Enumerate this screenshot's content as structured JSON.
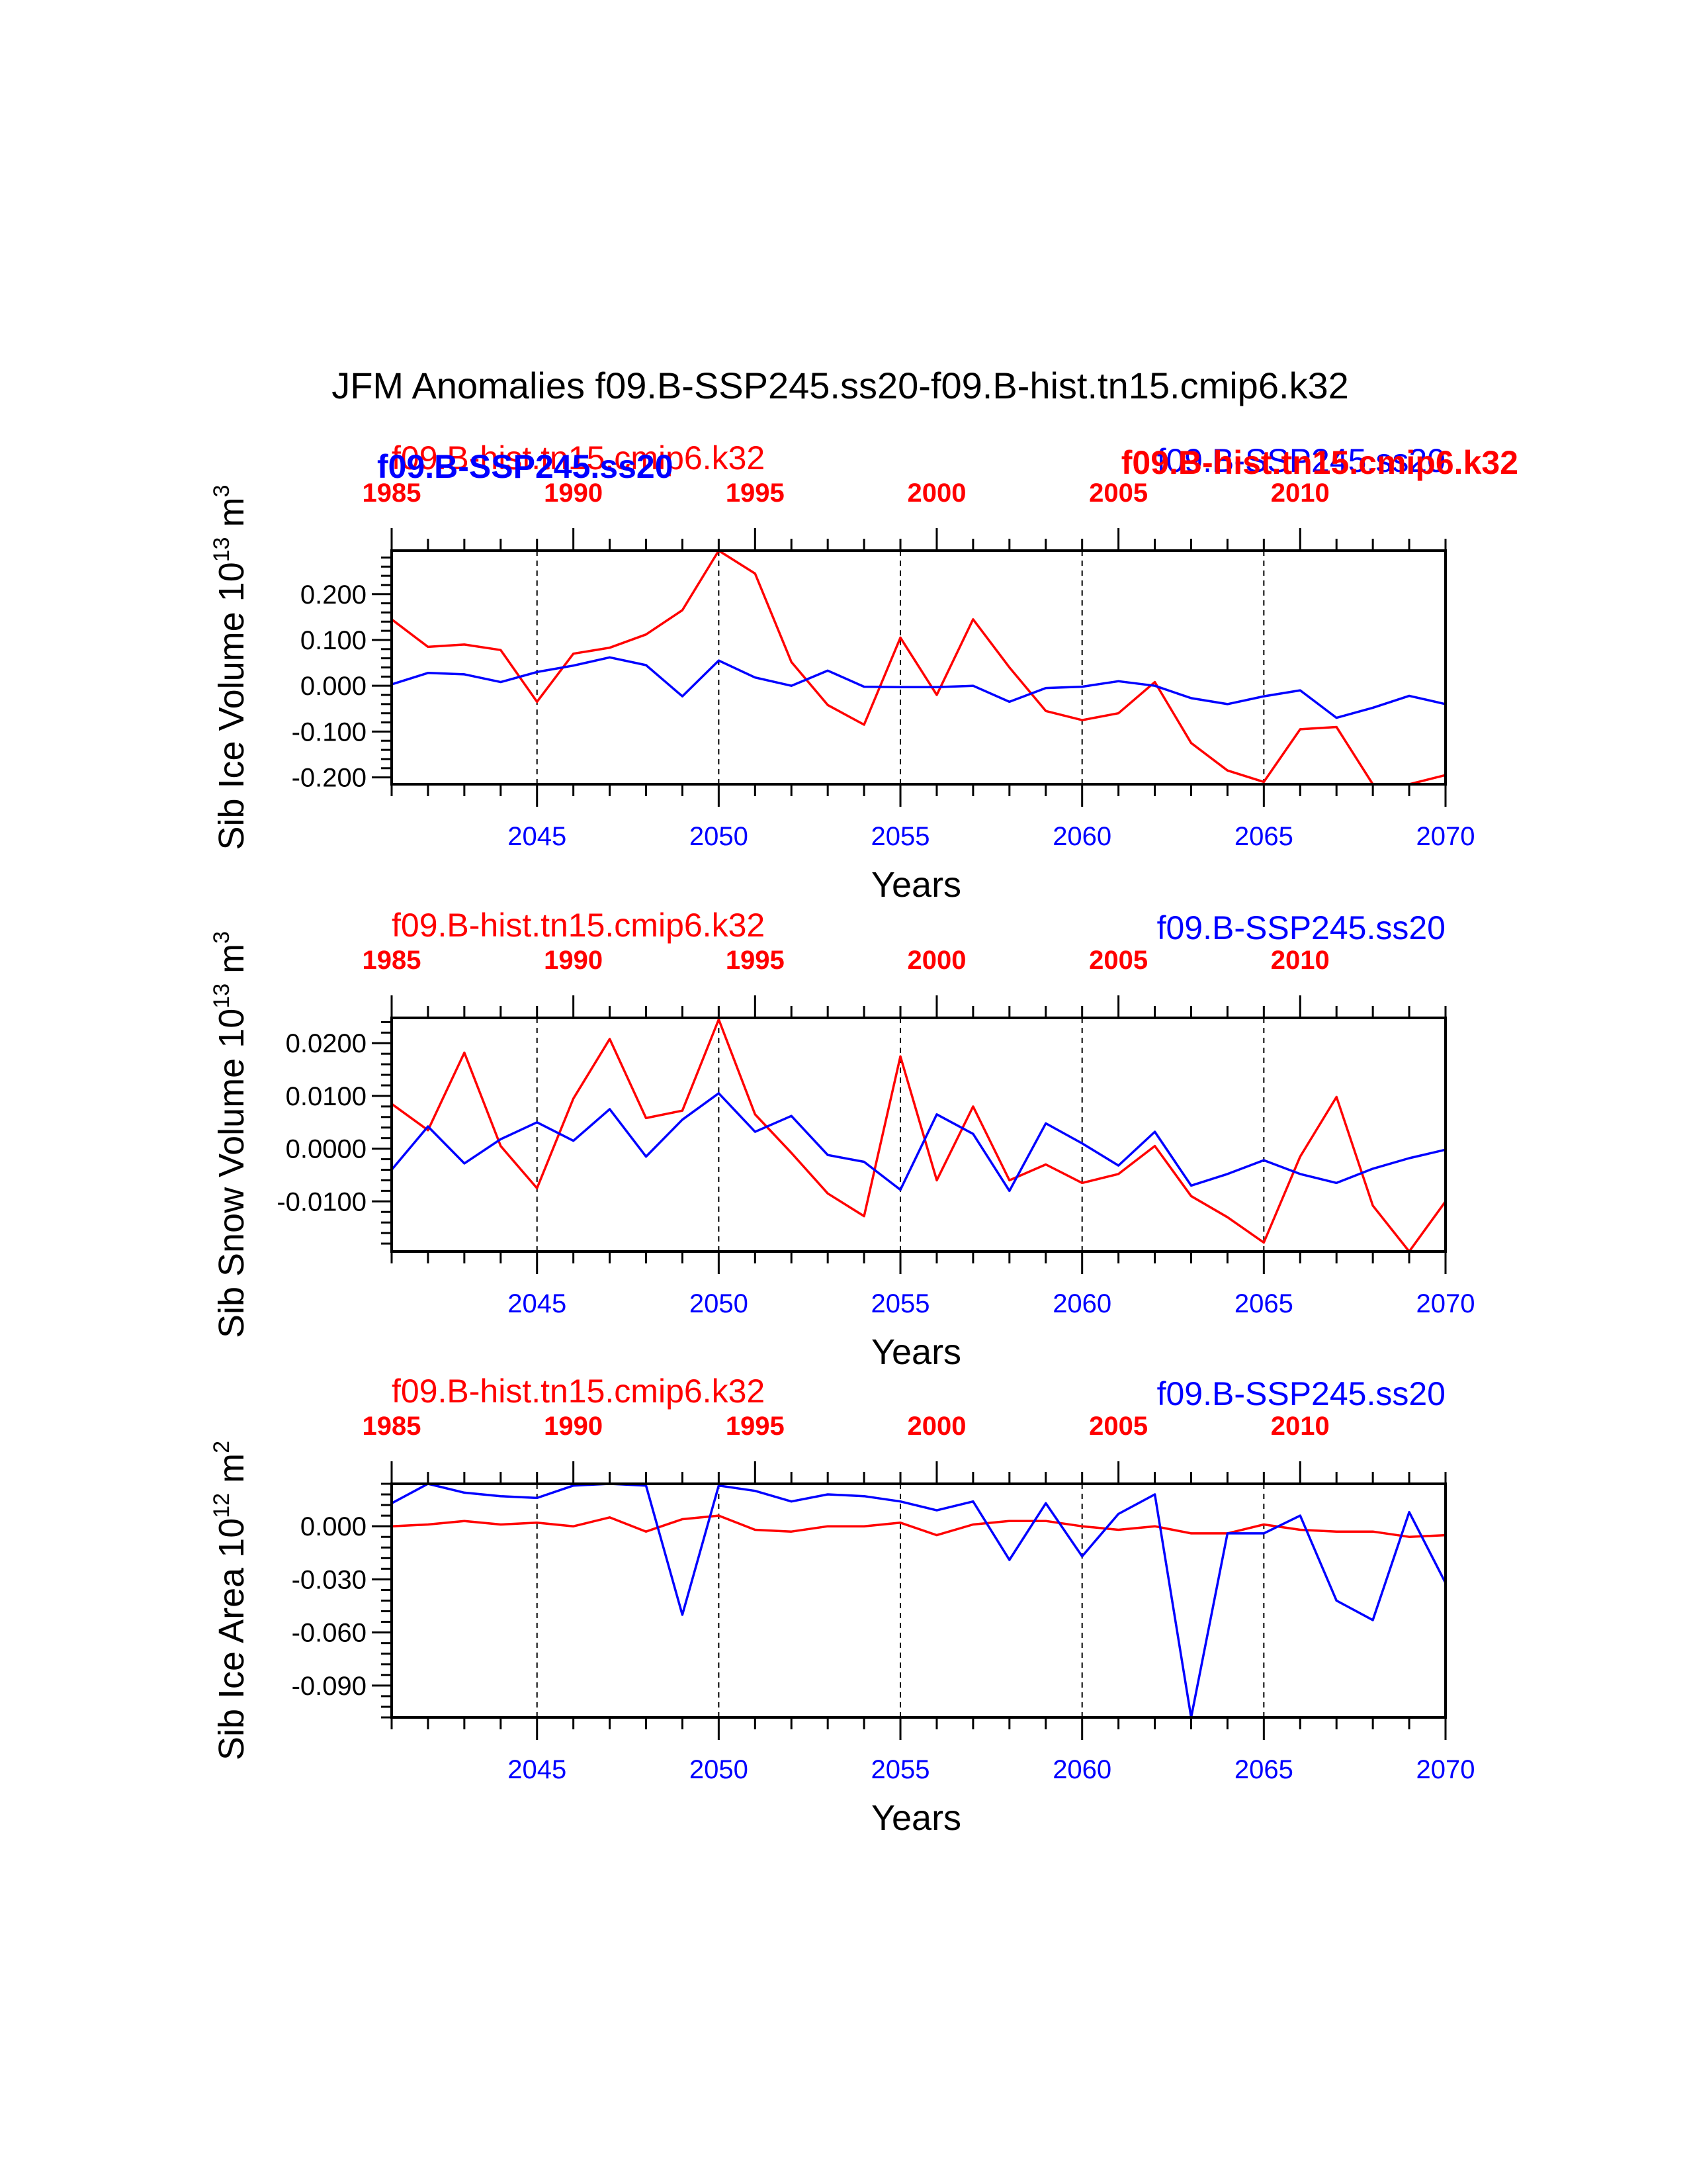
{
  "title": "JFM Anomalies f09.B-SSP245.ss20-f09.B-hist.tn15.cmip6.k32",
  "colors": {
    "ssp": "#0000ff",
    "hist": "#ff0000",
    "axis": "#000000"
  },
  "overlay": {
    "left_blue": "f09.B-SSP245.ss20",
    "right_red": "f09.B-hist.tn15.cmip6.k32"
  },
  "chart_data": [
    {
      "type": "line",
      "ylabel": "Sib Ice Volume",
      "ylabel_exp": "10",
      "ylabel_exp_sup": "13",
      "ylabel_unit": "m",
      "ylabel_unit_sup": "3",
      "xlabel": "Years",
      "label_hist": "f09.B-hist.tn15.cmip6.k32",
      "label_ssp": "f09.B-SSP245.ss20",
      "ylim": [
        -0.215,
        0.295
      ],
      "yticks": [
        "0.200",
        "0.100",
        "0.000",
        "-0.100",
        "-0.200"
      ],
      "ytick_values": [
        0.2,
        0.1,
        0.0,
        -0.1,
        -0.2
      ],
      "ssp_x": [
        2041,
        2042,
        2043,
        2044,
        2045,
        2046,
        2047,
        2048,
        2049,
        2050,
        2051,
        2052,
        2053,
        2054,
        2055,
        2056,
        2057,
        2058,
        2059,
        2060,
        2061,
        2062,
        2063,
        2064,
        2065,
        2066,
        2067,
        2068,
        2069,
        2070
      ],
      "hist_x": [
        1985,
        1986,
        1987,
        1988,
        1989,
        1990,
        1991,
        1992,
        1993,
        1994,
        1995,
        1996,
        1997,
        1998,
        1999,
        2000,
        2001,
        2002,
        2003,
        2004,
        2005,
        2006,
        2007,
        2008,
        2009,
        2010,
        2011,
        2012,
        2013,
        2014
      ],
      "series": [
        {
          "name": "f09.B-hist.tn15.cmip6.k32",
          "color": "#ff0000",
          "values": [
            0.145,
            0.085,
            0.09,
            0.078,
            -0.035,
            0.07,
            0.083,
            0.112,
            0.165,
            0.295,
            0.245,
            0.052,
            -0.042,
            -0.085,
            0.105,
            -0.02,
            0.145,
            0.04,
            -0.055,
            -0.075,
            -0.06,
            0.008,
            -0.125,
            -0.185,
            -0.21,
            -0.095,
            -0.09,
            -0.215,
            -0.215,
            -0.195
          ]
        },
        {
          "name": "f09.B-SSP245.ss20",
          "color": "#0000ff",
          "values": [
            0.003,
            0.028,
            0.025,
            0.008,
            0.03,
            0.044,
            0.062,
            0.045,
            -0.023,
            0.055,
            0.018,
            0.0,
            0.033,
            -0.002,
            -0.003,
            -0.003,
            0.0,
            -0.035,
            -0.005,
            -0.002,
            0.01,
            0.0,
            -0.027,
            -0.04,
            -0.023,
            -0.01,
            -0.07,
            -0.048,
            -0.022,
            -0.04
          ]
        }
      ]
    },
    {
      "type": "line",
      "ylabel": "Sib Snow Volume",
      "ylabel_exp": "10",
      "ylabel_exp_sup": "13",
      "ylabel_unit": "m",
      "ylabel_unit_sup": "3",
      "xlabel": "Years",
      "label_hist": "f09.B-hist.tn15.cmip6.k32",
      "label_ssp": "f09.B-SSP245.ss20",
      "ylim": [
        -0.0195,
        0.0248
      ],
      "yticks": [
        "0.0200",
        "0.0100",
        "0.0000",
        "-0.0100"
      ],
      "ytick_values": [
        0.02,
        0.01,
        0.0,
        -0.01
      ],
      "ssp_x": [
        2041,
        2042,
        2043,
        2044,
        2045,
        2046,
        2047,
        2048,
        2049,
        2050,
        2051,
        2052,
        2053,
        2054,
        2055,
        2056,
        2057,
        2058,
        2059,
        2060,
        2061,
        2062,
        2063,
        2064,
        2065,
        2066,
        2067,
        2068,
        2069,
        2070
      ],
      "hist_x": [
        1985,
        1986,
        1987,
        1988,
        1989,
        1990,
        1991,
        1992,
        1993,
        1994,
        1995,
        1996,
        1997,
        1998,
        1999,
        2000,
        2001,
        2002,
        2003,
        2004,
        2005,
        2006,
        2007,
        2008,
        2009,
        2010,
        2011,
        2012,
        2013,
        2014
      ],
      "series": [
        {
          "name": "f09.B-hist.tn15.cmip6.k32",
          "color": "#ff0000",
          "values": [
            0.0085,
            0.0035,
            0.0182,
            0.0005,
            -0.0075,
            0.0095,
            0.0208,
            0.0058,
            0.0072,
            0.0245,
            0.0065,
            -0.0008,
            -0.0085,
            -0.0128,
            0.0175,
            -0.006,
            0.008,
            -0.006,
            -0.003,
            -0.0065,
            -0.0048,
            0.0005,
            -0.009,
            -0.013,
            -0.0178,
            -0.0015,
            0.0098,
            -0.0108,
            -0.0195,
            -0.01
          ]
        },
        {
          "name": "f09.B-SSP245.ss20",
          "color": "#0000ff",
          "values": [
            -0.004,
            0.0042,
            -0.0028,
            0.0018,
            0.005,
            0.0015,
            0.0075,
            -0.0015,
            0.0055,
            0.0105,
            0.0032,
            0.0062,
            -0.0012,
            -0.0025,
            -0.0078,
            0.0065,
            0.0028,
            -0.008,
            0.0048,
            0.001,
            -0.0032,
            0.0032,
            -0.007,
            -0.0048,
            -0.0022,
            -0.0048,
            -0.0065,
            -0.0038,
            -0.0018,
            -0.0002
          ]
        }
      ]
    },
    {
      "type": "line",
      "ylabel": "Sib Ice Area",
      "ylabel_exp": "10",
      "ylabel_exp_sup": "12",
      "ylabel_unit": "m",
      "ylabel_unit_sup": "2",
      "xlabel": "Years",
      "label_hist": "f09.B-hist.tn15.cmip6.k32",
      "label_ssp": "f09.B-SSP245.ss20",
      "ylim": [
        -0.108,
        0.024
      ],
      "yticks": [
        "0.000",
        "-0.030",
        "-0.060",
        "-0.090"
      ],
      "ytick_values": [
        0.0,
        -0.03,
        -0.06,
        -0.09
      ],
      "ssp_x": [
        2041,
        2042,
        2043,
        2044,
        2045,
        2046,
        2047,
        2048,
        2049,
        2050,
        2051,
        2052,
        2053,
        2054,
        2055,
        2056,
        2057,
        2058,
        2059,
        2060,
        2061,
        2062,
        2063,
        2064,
        2065,
        2066,
        2067,
        2068,
        2069,
        2070
      ],
      "hist_x": [
        1985,
        1986,
        1987,
        1988,
        1989,
        1990,
        1991,
        1992,
        1993,
        1994,
        1995,
        1996,
        1997,
        1998,
        1999,
        2000,
        2001,
        2002,
        2003,
        2004,
        2005,
        2006,
        2007,
        2008,
        2009,
        2010,
        2011,
        2012,
        2013,
        2014
      ],
      "series": [
        {
          "name": "f09.B-hist.tn15.cmip6.k32",
          "color": "#ff0000",
          "values": [
            0.0,
            0.001,
            0.003,
            0.001,
            0.002,
            0.0,
            0.005,
            -0.003,
            0.004,
            0.006,
            -0.002,
            -0.003,
            0.0,
            0.0,
            0.002,
            -0.005,
            0.001,
            0.003,
            0.003,
            0.0,
            -0.002,
            0.0,
            -0.004,
            -0.004,
            0.001,
            -0.002,
            -0.003,
            -0.003,
            -0.006,
            -0.005
          ]
        },
        {
          "name": "f09.B-SSP245.ss20",
          "color": "#0000ff",
          "values": [
            0.013,
            0.024,
            0.019,
            0.017,
            0.016,
            0.023,
            0.024,
            0.023,
            -0.05,
            0.023,
            0.02,
            0.014,
            0.018,
            0.017,
            0.014,
            0.009,
            0.014,
            -0.019,
            0.013,
            -0.017,
            0.007,
            0.018,
            -0.108,
            -0.004,
            -0.004,
            0.006,
            -0.042,
            -0.053,
            0.008,
            -0.032
          ]
        }
      ]
    }
  ]
}
